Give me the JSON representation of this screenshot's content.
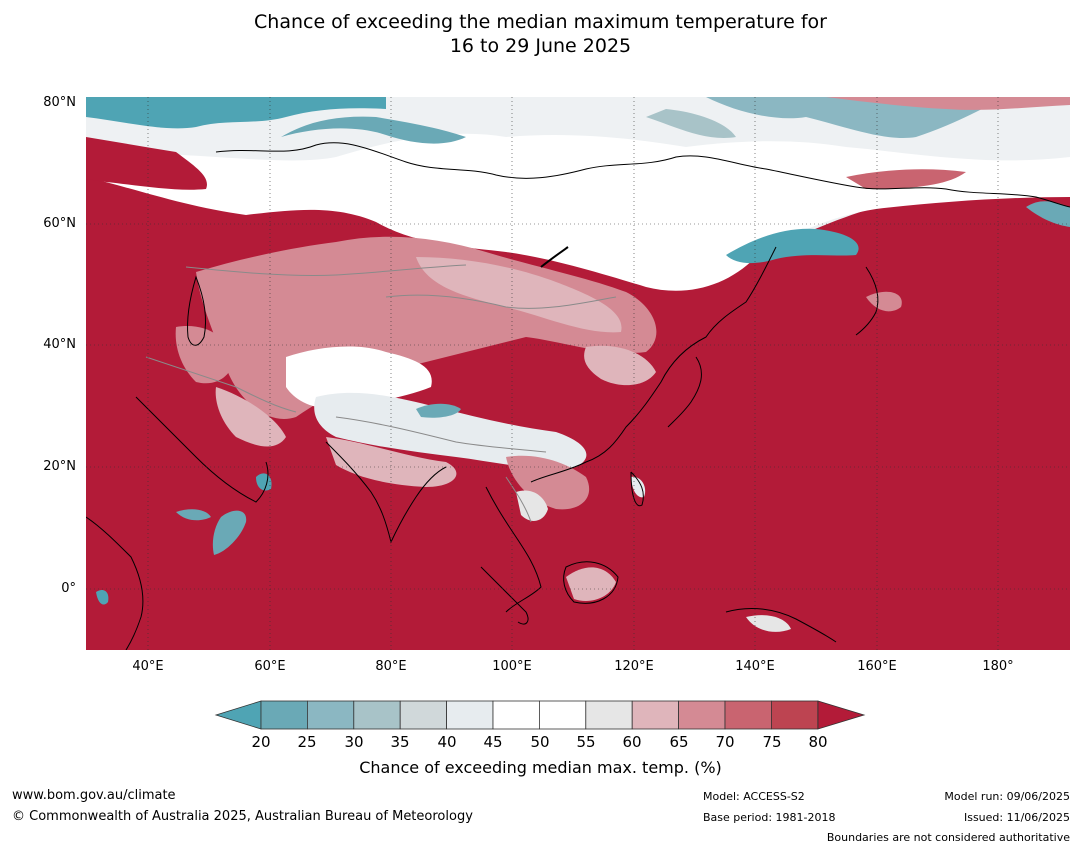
{
  "title": {
    "line1": "Chance of exceeding the median maximum temperature for",
    "line2": "16 to 29 June 2025"
  },
  "map": {
    "latitude_labels": [
      "80°N",
      "60°N",
      "40°N",
      "20°N",
      "0°"
    ],
    "longitude_labels": [
      "40°E",
      "60°E",
      "80°E",
      "100°E",
      "120°E",
      "140°E",
      "160°E",
      "180°"
    ]
  },
  "colorbar": {
    "ticks": [
      "20",
      "25",
      "30",
      "35",
      "40",
      "45",
      "50",
      "55",
      "60",
      "65",
      "70",
      "75",
      "80"
    ],
    "colors": {
      "below_20": "#4fa4b4",
      "20_25": "#6aa9b6",
      "25_30": "#8bb7c2",
      "30_35": "#a8c3c8",
      "35_40": "#d0d8da",
      "40_45": "#e7ecef",
      "45_50": "#ffffff",
      "50_55": "#ffffff",
      "55_60": "#e6e6e6",
      "60_65": "#dfb5bb",
      "65_70": "#d48a94",
      "70_75": "#c96470",
      "75_80": "#bd4451",
      "above_80": "#b31b38"
    },
    "label": "Chance of exceeding median max. temp. (%)"
  },
  "footer": {
    "website": "www.bom.gov.au/climate",
    "copyright": "© Commonwealth of Australia 2025, Australian Bureau of Meteorology",
    "model": "Model: ACCESS-S2",
    "base_period": "Base period: 1981-2018",
    "model_run": "Model run: 09/06/2025",
    "issued": "Issued: 11/06/2025",
    "disclaimer": "Boundaries are not considered authoritative"
  }
}
